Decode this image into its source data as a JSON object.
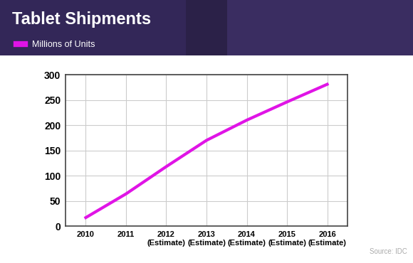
{
  "chart_data": {
    "type": "line",
    "title": "Tablet Shipments",
    "categories": [
      "2010",
      "2011",
      "2012\n(Estimate)",
      "2013\n(Estimate)",
      "2014\n(Estimate)",
      "2015\n(Estimate)",
      "2016\n(Estimate)"
    ],
    "series": [
      {
        "name": "Millions of Units",
        "color": "#e014e6",
        "values": [
          17,
          64,
          118,
          170,
          210,
          246,
          281
        ]
      }
    ],
    "ylim": [
      0,
      300
    ],
    "yticks": [
      0,
      50,
      100,
      150,
      200,
      250,
      300
    ],
    "grid": true,
    "legend": "upper left",
    "annotations": [
      "Source: IDC"
    ]
  }
}
